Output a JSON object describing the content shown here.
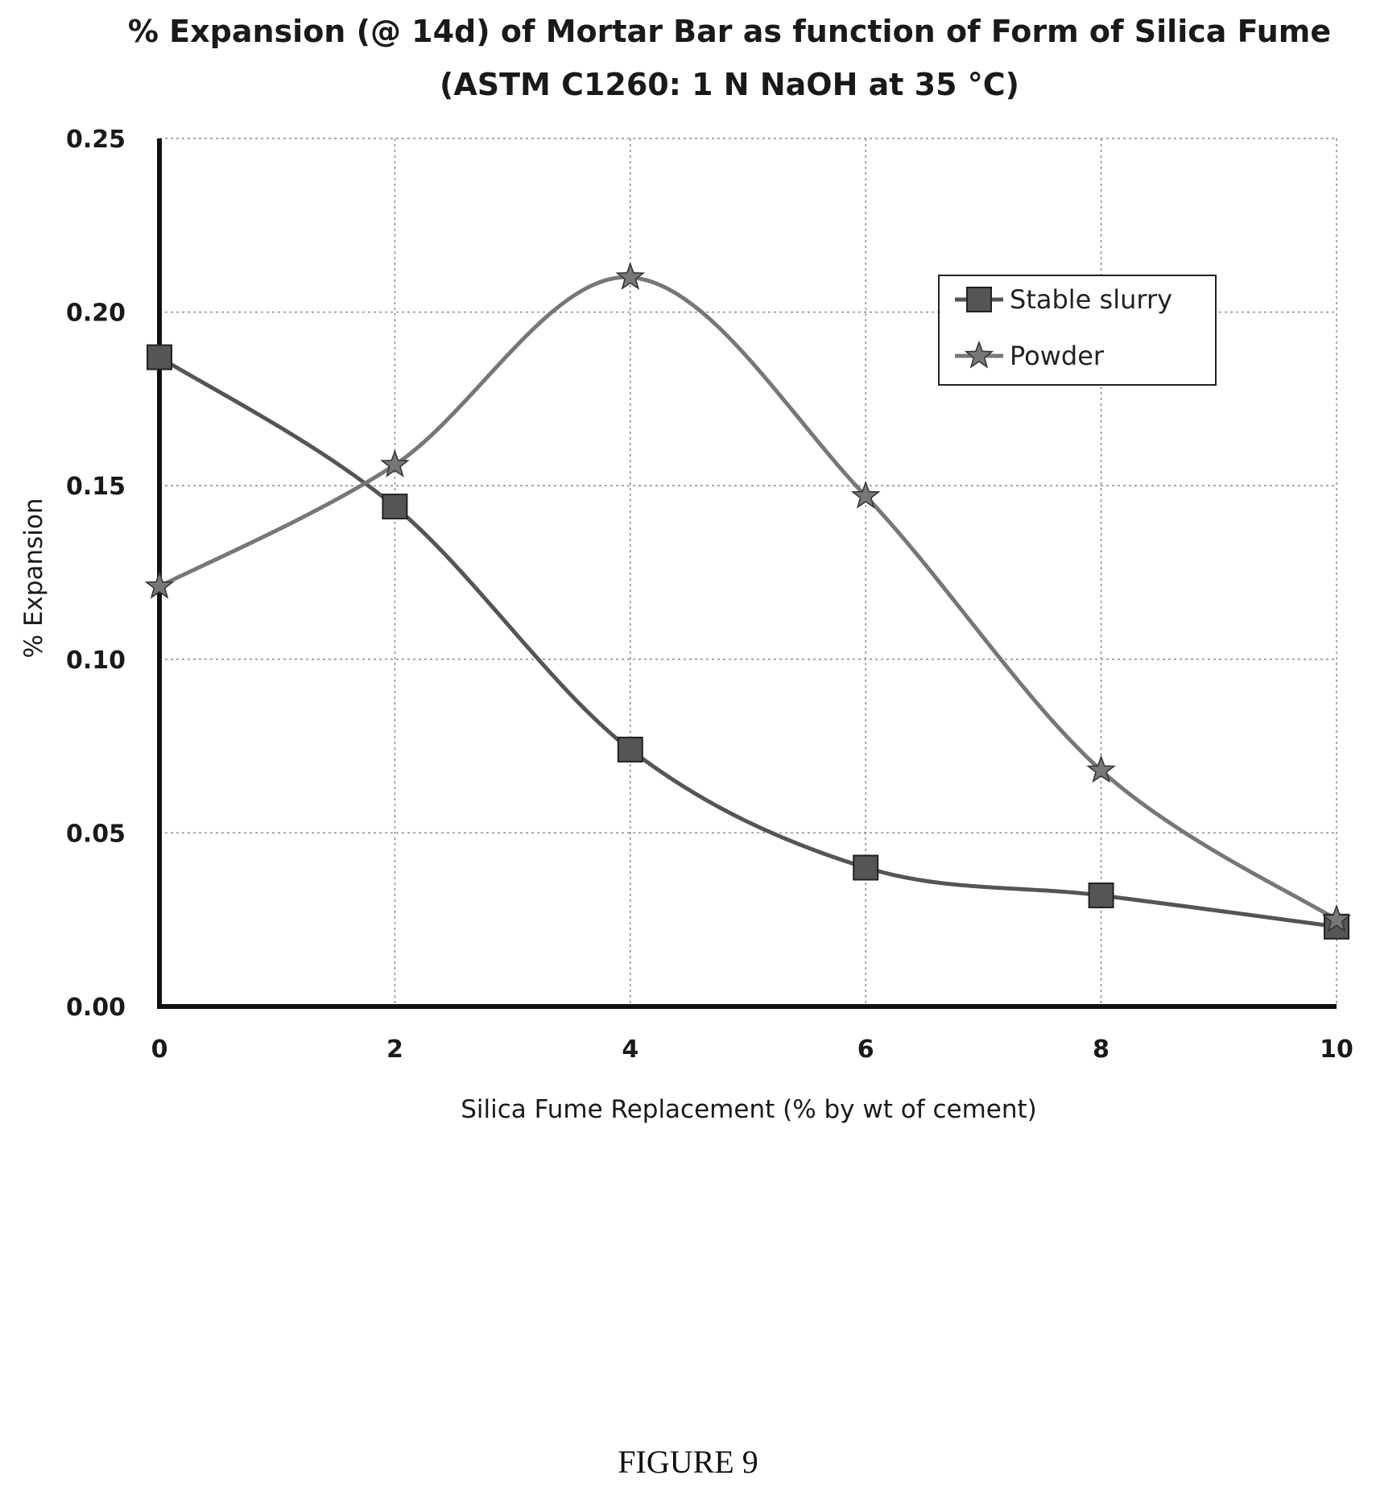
{
  "chart_data": {
    "type": "line",
    "title_line1": "% Expansion (@ 14d) of Mortar Bar as function of Form of Silica Fume",
    "title_line2": "(ASTM C1260: 1 N NaOH at 35 °C)",
    "xlabel": "Silica Fume Replacement (% by wt of cement)",
    "ylabel": "% Expansion",
    "x": [
      0,
      2,
      4,
      6,
      8,
      10
    ],
    "xlim": [
      0,
      10
    ],
    "ylim": [
      0,
      0.25
    ],
    "x_ticks": [
      "0",
      "2",
      "4",
      "6",
      "8",
      "10"
    ],
    "y_ticks": [
      "0.00",
      "0.05",
      "0.10",
      "0.15",
      "0.20",
      "0.25"
    ],
    "grid": true,
    "legend_position": "top-right",
    "smooth_lines": true,
    "series": [
      {
        "name": "Stable slurry",
        "marker": "square",
        "color": "#555555",
        "values": [
          0.187,
          0.144,
          0.074,
          0.04,
          0.032,
          0.023
        ]
      },
      {
        "name": "Powder",
        "marker": "star",
        "color": "#777777",
        "values": [
          0.121,
          0.156,
          0.21,
          0.147,
          0.068,
          0.025
        ]
      }
    ]
  },
  "caption": "FIGURE 9"
}
